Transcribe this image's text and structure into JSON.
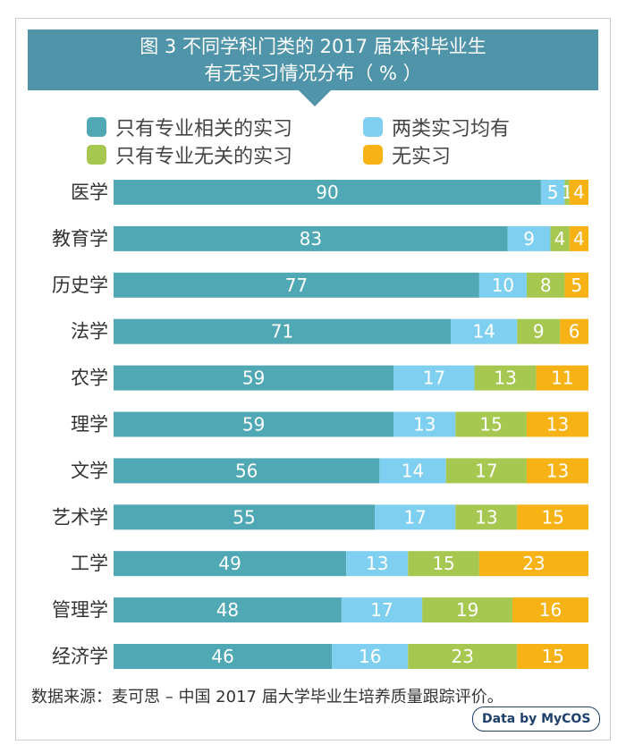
{
  "chart_data": {
    "type": "bar",
    "orientation": "horizontal",
    "stacked": true,
    "title_lines": [
      "图 3  不同学科门类的 2017 届本科毕业生",
      "有无实习情况分布（ % ）"
    ],
    "legend": [
      {
        "name": "只有专业相关的实习",
        "color": "#4fa8b3"
      },
      {
        "name": "两类实习均有",
        "color": "#7fcff0"
      },
      {
        "name": "只有专业无关的实习",
        "color": "#a6c851"
      },
      {
        "name": "无实习",
        "color": "#f7b216"
      }
    ],
    "categories": [
      "医学",
      "教育学",
      "历史学",
      "法学",
      "农学",
      "理学",
      "文学",
      "艺术学",
      "工学",
      "管理学",
      "经济学"
    ],
    "series": [
      {
        "name": "只有专业相关的实习",
        "color": "#4fa8b3",
        "values": [
          90,
          83,
          77,
          71,
          59,
          59,
          56,
          55,
          49,
          48,
          46
        ]
      },
      {
        "name": "两类实习均有",
        "color": "#7fcff0",
        "values": [
          5,
          9,
          10,
          14,
          17,
          13,
          14,
          17,
          13,
          17,
          16
        ]
      },
      {
        "name": "只有专业无关的实习",
        "color": "#a6c851",
        "values": [
          1,
          4,
          8,
          9,
          13,
          15,
          17,
          13,
          15,
          19,
          23
        ]
      },
      {
        "name": "无实习",
        "color": "#f7b216",
        "values": [
          4,
          4,
          5,
          6,
          11,
          13,
          13,
          15,
          23,
          16,
          15
        ]
      }
    ],
    "xlim": [
      0,
      100
    ]
  },
  "footer": {
    "source": "数据来源：麦可思 – 中国 2017 届大学毕业生培养质量跟踪评价。",
    "badge": "Data by MyCOS"
  }
}
